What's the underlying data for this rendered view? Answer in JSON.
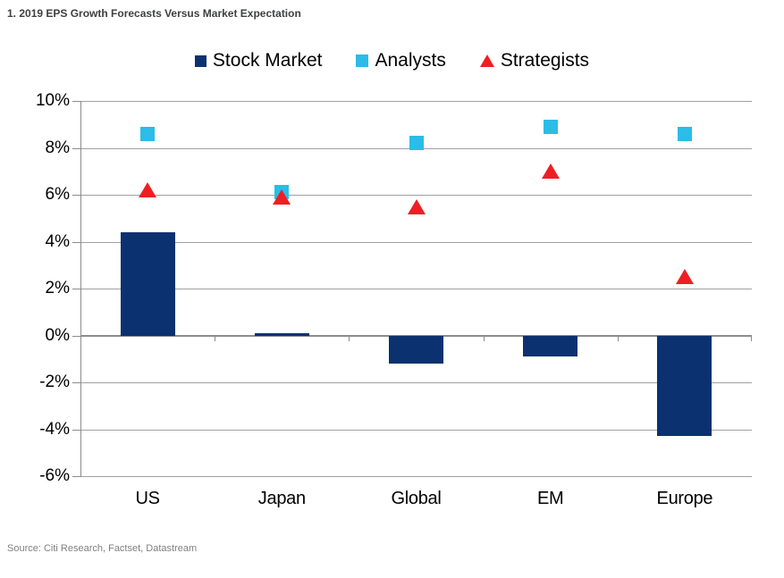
{
  "title": "1. 2019 EPS Growth Forecasts Versus Market Expectation",
  "source": "Source: Citi Research, Factset, Datastream",
  "colors": {
    "navy": "#0b3170",
    "cyan": "#2bbce8",
    "red": "#ee1f23",
    "gridline": "#a0a0a0",
    "axis": "#8c8c8c",
    "title_text": "#3f4042",
    "source_text": "#808080"
  },
  "legend": [
    {
      "label": "Stock Market",
      "marker": "square",
      "color": "#0b3170"
    },
    {
      "label": "Analysts",
      "marker": "square",
      "color": "#2bbce8"
    },
    {
      "label": "Strategists",
      "marker": "triangle",
      "color": "#ee1f23"
    }
  ],
  "chart_data": {
    "type": "bar",
    "subtype": "bar-with-scatter-overlay",
    "title": "1. 2019 EPS Growth Forecasts Versus Market Expectation",
    "categories": [
      "US",
      "Japan",
      "Global",
      "EM",
      "Europe"
    ],
    "series": [
      {
        "name": "Stock Market",
        "type": "bar",
        "marker": "square",
        "color": "#0b3170",
        "values": [
          4.4,
          0.1,
          -1.2,
          -0.9,
          -4.3
        ]
      },
      {
        "name": "Analysts",
        "type": "scatter",
        "marker": "square",
        "color": "#2bbce8",
        "values": [
          8.6,
          6.1,
          8.2,
          8.9,
          8.6
        ]
      },
      {
        "name": "Strategists",
        "type": "scatter",
        "marker": "triangle",
        "color": "#ee1f23",
        "values": [
          6.2,
          5.9,
          5.5,
          7.0,
          2.5
        ]
      }
    ],
    "xlabel": "",
    "ylabel": "",
    "ylim": [
      -6,
      10
    ],
    "ytick_step": 2,
    "yticks": [
      "10%",
      "8%",
      "6%",
      "4%",
      "2%",
      "0%",
      "-2%",
      "-4%",
      "-6%"
    ],
    "grid": "horizontal",
    "legend_position": "top-center"
  }
}
